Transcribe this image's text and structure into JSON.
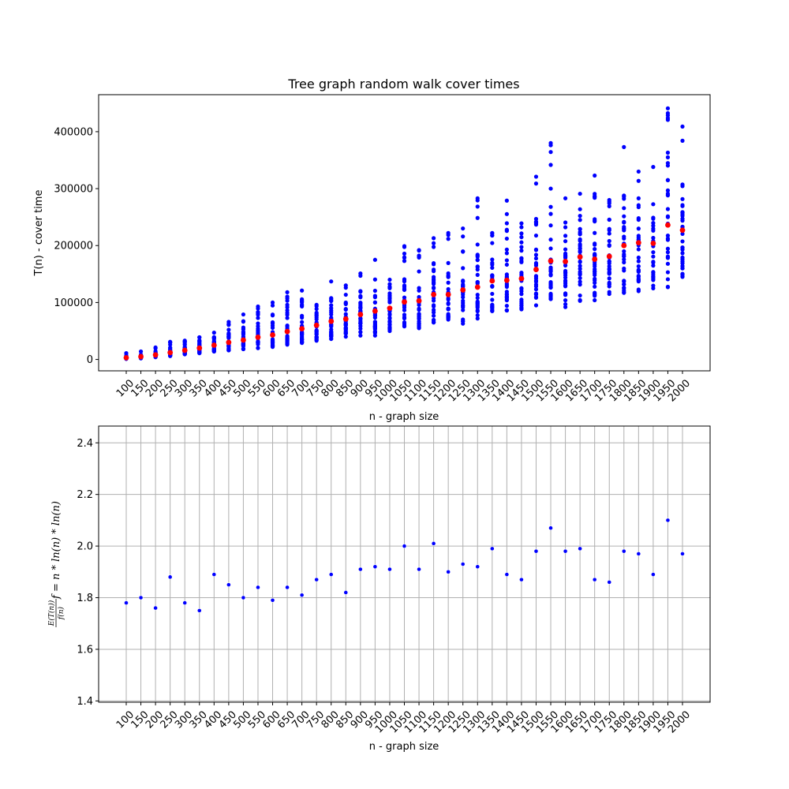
{
  "chart_data": [
    {
      "type": "scatter",
      "title": "Tree graph random walk cover times",
      "xlabel": "n - graph size",
      "ylabel": "T(n) - cover time",
      "x": [
        100,
        150,
        200,
        250,
        300,
        350,
        400,
        450,
        500,
        550,
        600,
        650,
        700,
        750,
        800,
        850,
        900,
        950,
        1000,
        1050,
        1100,
        1150,
        1200,
        1250,
        1300,
        1350,
        1400,
        1450,
        1500,
        1550,
        1600,
        1650,
        1700,
        1750,
        1800,
        1850,
        1900,
        1950,
        2000
      ],
      "ylim": [
        -20000,
        465000
      ],
      "yticks": [
        0,
        100000,
        200000,
        300000,
        400000
      ],
      "colors": {
        "samples": "#0000ff",
        "mean": "#ff0000"
      },
      "series": [
        {
          "role": "mean",
          "values": [
            3000,
            5000,
            8000,
            12000,
            16000,
            20000,
            25000,
            30000,
            34000,
            39000,
            43000,
            49000,
            54000,
            60000,
            67000,
            71000,
            79000,
            85000,
            90000,
            101000,
            103000,
            114000,
            114000,
            122000,
            127000,
            138000,
            139000,
            142000,
            158000,
            173000,
            172000,
            180000,
            176000,
            181000,
            200000,
            205000,
            204000,
            236000,
            227000
          ]
        },
        {
          "role": "samples",
          "min": [
            1000,
            2000,
            4000,
            6000,
            9000,
            11000,
            14000,
            16000,
            18000,
            20000,
            22000,
            26000,
            29000,
            33000,
            36000,
            40000,
            42000,
            42000,
            50000,
            58000,
            55000,
            65000,
            70000,
            63000,
            72000,
            85000,
            86000,
            88000,
            95000,
            106000,
            92000,
            103000,
            104000,
            115000,
            117000,
            120000,
            125000,
            127000,
            145000
          ],
          "max": [
            11000,
            14000,
            21000,
            31000,
            33000,
            39000,
            47000,
            66000,
            79000,
            93000,
            100000,
            118000,
            121000,
            96000,
            137000,
            130000,
            151000,
            175000,
            140000,
            199000,
            192000,
            213000,
            222000,
            230000,
            283000,
            222000,
            279000,
            239000,
            321000,
            380000,
            283000,
            291000,
            323000,
            280000,
            373000,
            330000,
            338000,
            441000,
            409000
          ]
        }
      ]
    },
    {
      "type": "scatter",
      "title": "",
      "xlabel": "n - graph size",
      "ylabel_fraction_numerator": "E(T(n))",
      "ylabel_fraction_denominator": "f(n)",
      "ylabel_formula": "f = n * ln(n) * ln(n)",
      "x": [
        100,
        150,
        200,
        250,
        300,
        350,
        400,
        450,
        500,
        550,
        600,
        650,
        700,
        750,
        800,
        850,
        900,
        950,
        1000,
        1050,
        1100,
        1150,
        1200,
        1250,
        1300,
        1350,
        1400,
        1450,
        1500,
        1550,
        1600,
        1650,
        1700,
        1750,
        1800,
        1850,
        1900,
        1950,
        2000
      ],
      "ylim": [
        1.395,
        2.465
      ],
      "yticks": [
        1.4,
        1.6,
        1.8,
        2.0,
        2.2,
        2.4
      ],
      "grid": true,
      "colors": {
        "points": "#0000ff",
        "grid": "#b0b0b0"
      },
      "series": [
        {
          "values": [
            1.78,
            1.8,
            1.76,
            1.88,
            1.78,
            1.75,
            1.89,
            1.85,
            1.8,
            1.84,
            1.79,
            1.84,
            1.81,
            1.87,
            1.89,
            1.82,
            1.91,
            1.92,
            1.91,
            2.0,
            1.91,
            2.01,
            1.9,
            1.93,
            1.92,
            1.99,
            1.89,
            1.87,
            1.98,
            2.07,
            1.98,
            1.99,
            1.87,
            1.86,
            1.98,
            1.97,
            1.89,
            2.1,
            1.97
          ]
        }
      ]
    }
  ]
}
